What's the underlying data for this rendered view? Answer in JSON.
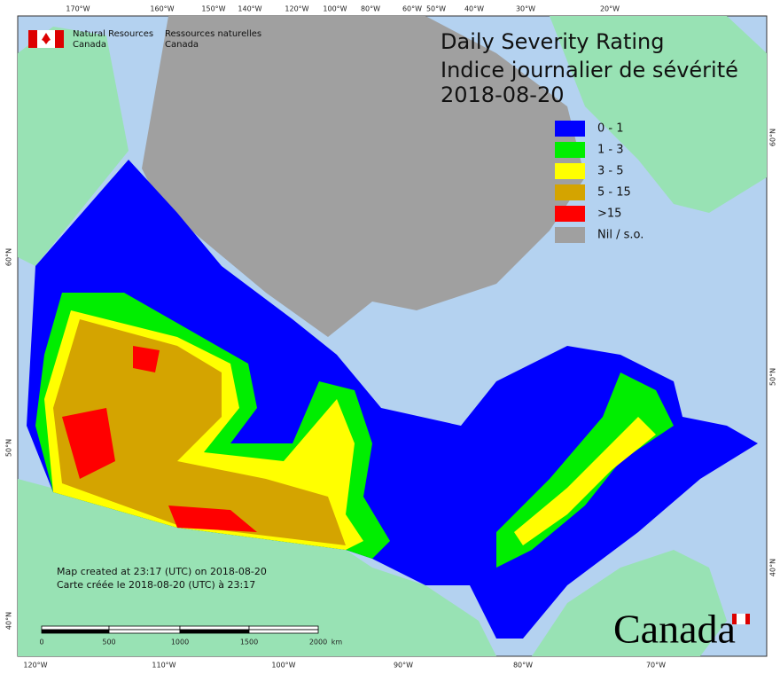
{
  "agency": [
    "Natural Resources",
    "Canada",
    "Ressources naturelles",
    "Canada"
  ],
  "title": [
    "Daily Severity Rating",
    "Indice journalier de sévérité",
    "2018-08-20"
  ],
  "legend": [
    {
      "label": "0 - 1",
      "color": "#0000ff"
    },
    {
      "label": "1 - 3",
      "color": "#00ee00"
    },
    {
      "label": "3 - 5",
      "color": "#ffff00"
    },
    {
      "label": "5 - 15",
      "color": "#d4a400"
    },
    {
      "label": ">15",
      "color": "#ff0000"
    },
    {
      "label": "Nil / s.o.",
      "color": "#a0a0a0"
    }
  ],
  "graticule": {
    "top": [
      "170°W",
      "160°W",
      "150°W",
      "140°W",
      "120°W",
      "100°W",
      "80°W",
      "60°W",
      "50°W",
      "40°W",
      "30°W",
      "20°W"
    ],
    "bottom": [
      "120°W",
      "110°W",
      "100°W",
      "90°W",
      "80°W",
      "70°W"
    ],
    "left": [
      "60°N",
      "50°N",
      "40°N"
    ],
    "right": [
      "60°N",
      "50°N",
      "40°N"
    ]
  },
  "notes": [
    "Map created at 23:17 (UTC) on 2018-08-20",
    "Carte créée le 2018-08-20 (UTC) à 23:17"
  ],
  "scale": {
    "labels": [
      "0",
      "500",
      "1000",
      "1500",
      "2000"
    ],
    "unit": "km"
  },
  "wordmark": "Canada"
}
